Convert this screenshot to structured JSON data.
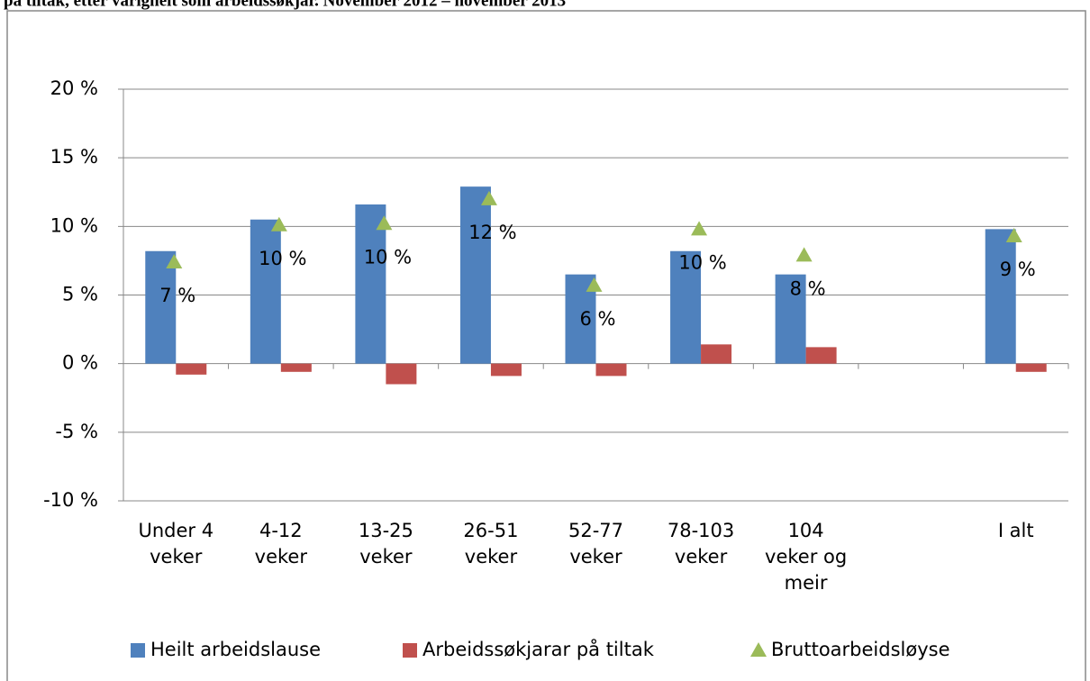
{
  "chart_data": {
    "type": "bar",
    "title": "på tiltak, etter varigheit som arbeidssøkjar. November 2012 – november 2013",
    "categories": [
      [
        "Under 4",
        "veker"
      ],
      [
        "4-12",
        "veker"
      ],
      [
        "13-25",
        "veker"
      ],
      [
        "26-51",
        "veker"
      ],
      [
        "52-77",
        "veker"
      ],
      [
        "78-103",
        "veker"
      ],
      [
        "104",
        "veker og",
        "meir"
      ],
      null,
      [
        "I alt"
      ]
    ],
    "series": [
      {
        "name": "Heilt arbeidslause",
        "color": "#4f81bd",
        "type": "bar",
        "values": [
          8.2,
          10.5,
          11.6,
          12.9,
          6.5,
          8.2,
          6.5,
          null,
          9.8
        ]
      },
      {
        "name": "Arbeidssøkjarar på tiltak",
        "color": "#c0504d",
        "type": "bar",
        "values": [
          -0.8,
          -0.6,
          -1.5,
          -0.9,
          -0.9,
          1.4,
          1.2,
          null,
          -0.6
        ]
      },
      {
        "name": "Bruttoarbeidsløyse",
        "color": "#9bbb59",
        "type": "scatter",
        "marker": "triangle",
        "values": [
          7.4,
          10.1,
          10.2,
          12.0,
          5.7,
          9.8,
          7.9,
          null,
          9.3
        ],
        "value_labels": [
          "7 %",
          "10 %",
          "10 %",
          "12 %",
          "6 %",
          "10 %",
          "8 %",
          null,
          "9 %"
        ]
      }
    ],
    "ylim": [
      -10,
      20
    ],
    "yticks": [
      {
        "value": -10,
        "label": "-10 %"
      },
      {
        "value": -5,
        "label": "-5 %"
      },
      {
        "value": 0,
        "label": "0 %"
      },
      {
        "value": 5,
        "label": "5 %"
      },
      {
        "value": 10,
        "label": "10 %"
      },
      {
        "value": 15,
        "label": "15 %"
      },
      {
        "value": 20,
        "label": "20 %"
      }
    ],
    "grid": true,
    "legend": "bottom"
  }
}
